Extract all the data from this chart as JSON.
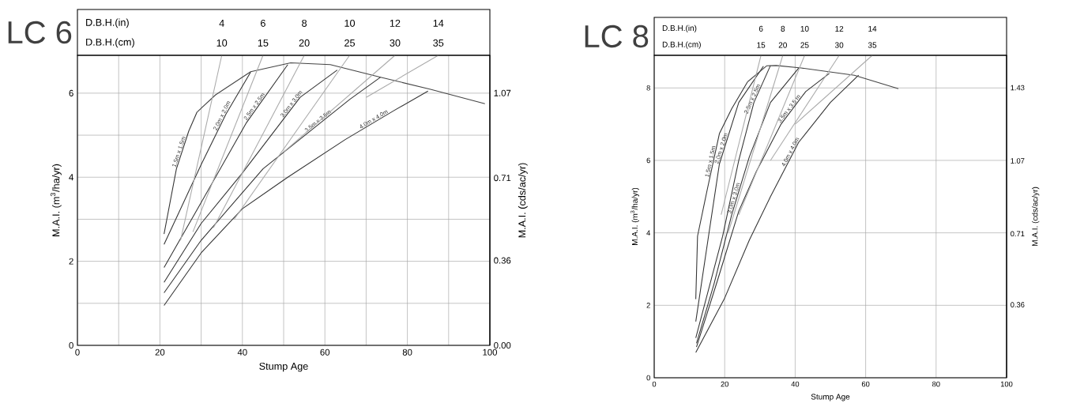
{
  "chart_data": [
    {
      "type": "line",
      "title": "LC 6",
      "xlabel": "Stump Age",
      "ylabel": "M.A.I. (m$^{3}$/ha/yr)",
      "y2label": "M.A.I. (cds/ac/yr)",
      "xlim": [
        0,
        100
      ],
      "ylim": [
        0,
        6.9
      ],
      "y2lim": [
        0,
        1.23
      ],
      "xticks": [
        0,
        {
          "value": 10,
          "label": null
        },
        20,
        {
          "value": 30,
          "label": null
        },
        40,
        {
          "value": 50,
          "label": null
        },
        60,
        {
          "value": 70,
          "label": null
        },
        80,
        {
          "value": 90,
          "label": null
        },
        100
      ],
      "yticks": [
        0,
        {
          "value": 1,
          "label": null
        },
        2,
        {
          "value": 3,
          "label": null
        },
        4,
        {
          "value": 5,
          "label": null
        },
        6
      ],
      "y2ticks": [
        {
          "value": 0,
          "label": "0.00"
        },
        0.36,
        0.71,
        1.07
      ],
      "annotations": [
        "D.B.H.(in)",
        "4",
        "6",
        "8",
        "10",
        "12",
        "14",
        "D.B.H.(cm)",
        "10",
        "15",
        "20",
        "25",
        "30",
        "35"
      ],
      "grid": true,
      "marker": "none",
      "series": [
        {
          "name": "1.5m x 1.5m",
          "color": "#333333",
          "x": [
            21,
            24,
            27,
            29
          ],
          "values": [
            2.65,
            4.2,
            5.1,
            5.55
          ]
        },
        {
          "name": "2.0m x 2.0m",
          "color": "#333333",
          "x": [
            21,
            30,
            36,
            42
          ],
          "values": [
            2.4,
            4.3,
            5.5,
            6.5
          ]
        },
        {
          "name": "2.5m x 2.5m",
          "color": "#333333",
          "x": [
            21,
            30,
            41,
            51
          ],
          "values": [
            1.85,
            3.4,
            5.3,
            6.68
          ]
        },
        {
          "name": "3.0m x 3.0m",
          "color": "#333333",
          "x": [
            21,
            30,
            40,
            54,
            63
          ],
          "values": [
            1.5,
            2.9,
            4.1,
            5.9,
            6.55
          ]
        },
        {
          "name": "3.5m x 3.5m",
          "color": "#333333",
          "x": [
            21,
            30,
            45,
            66,
            73.5
          ],
          "values": [
            1.25,
            2.5,
            4.2,
            5.85,
            6.38
          ]
        },
        {
          "name": "4.0m x 4.0m",
          "color": "#333333",
          "x": [
            21,
            30,
            40,
            51,
            65,
            77,
            85
          ],
          "values": [
            0.95,
            2.2,
            3.25,
            4.0,
            4.9,
            5.6,
            6.05
          ]
        },
        {
          "color": "#444444",
          "x": [
            29,
            33.5,
            42,
            51.7,
            61.3,
            73.5,
            85.6,
            98.8
          ],
          "values": [
            5.55,
            5.96,
            6.51,
            6.72,
            6.68,
            6.38,
            6.09,
            5.75
          ]
        },
        {
          "color": "#aaaaaa",
          "x": [
            25,
            35
          ],
          "values": [
            2.5,
            6.9
          ]
        },
        {
          "color": "#aaaaaa",
          "x": [
            28,
            45
          ],
          "values": [
            2.7,
            6.9
          ]
        },
        {
          "color": "#aaaaaa",
          "x": [
            33,
            55
          ],
          "values": [
            2.8,
            6.9
          ]
        },
        {
          "color": "#aaaaaa",
          "x": [
            38,
            66
          ],
          "values": [
            3.0,
            6.9
          ]
        },
        {
          "color": "#aaaaaa",
          "x": [
            50,
            77
          ],
          "values": [
            4.6,
            6.9
          ]
        },
        {
          "color": "#aaaaaa",
          "x": [
            70,
            87.5
          ],
          "values": [
            5.9,
            6.9
          ]
        }
      ]
    },
    {
      "type": "line",
      "title": "LC 8",
      "xlabel": "Stump Age",
      "ylabel": "M.A.I. (m$^{3}$/ha/yr)",
      "y2label": "M.A.I. (cds/ac/yr)",
      "xlim": [
        0,
        100
      ],
      "ylim": [
        0,
        8.9
      ],
      "y2lim": [
        0,
        1.59
      ],
      "xticks": [
        0,
        20,
        40,
        60,
        80,
        100
      ],
      "yticks": [
        0,
        2,
        4,
        6,
        8
      ],
      "y2ticks": [
        0.36,
        0.71,
        1.07,
        1.43
      ],
      "annotations": [
        "D.B.H.(in)",
        "6",
        "8",
        "10",
        "12",
        "14",
        "D.B.H.(cm)",
        "15",
        "20",
        "25",
        "30",
        "35"
      ],
      "grid": true,
      "marker": "none",
      "series": [
        {
          "name": "1.5m x 1.5m",
          "color": "#333333",
          "x": [
            11.8,
            12.3,
            15,
            18.5,
            22,
            26.5
          ],
          "values": [
            2.17,
            3.91,
            5.17,
            6.74,
            7.43,
            8.17
          ]
        },
        {
          "name": "2.0m x 2.0m",
          "color": "#333333",
          "x": [
            11.8,
            15.4,
            18.5,
            24,
            31
          ],
          "values": [
            1.55,
            3.9,
            5.9,
            7.6,
            8.6
          ]
        },
        {
          "name": "2.5m x 2.5m",
          "color": "#333333",
          "x": [
            11.8,
            19.4,
            24,
            28.3,
            33
          ],
          "values": [
            1.1,
            3.9,
            6.0,
            7.6,
            8.62
          ]
        },
        {
          "name": "3.0m x 3.0m",
          "color": "#333333",
          "x": [
            12,
            17,
            22,
            27,
            33,
            41
          ],
          "values": [
            0.95,
            2.6,
            4.5,
            6.1,
            7.6,
            8.55
          ]
        },
        {
          "name": "3.5m x 3.5 m",
          "color": "#333333",
          "x": [
            12,
            18,
            24,
            29,
            36,
            43,
            49.7
          ],
          "values": [
            0.85,
            2.7,
            4.6,
            5.7,
            7.0,
            7.9,
            8.4
          ]
        },
        {
          "name": "4.0m x 4.0m",
          "color": "#333333",
          "x": [
            11.8,
            20,
            27,
            33,
            41,
            50,
            58
          ],
          "values": [
            0.7,
            2.2,
            3.8,
            5.0,
            6.5,
            7.6,
            8.35
          ]
        },
        {
          "color": "#444444",
          "x": [
            26.5,
            31.9,
            34.6,
            41.7,
            56.8,
            69.3
          ],
          "values": [
            8.17,
            8.61,
            8.62,
            8.55,
            8.35,
            7.98
          ]
        },
        {
          "color": "#aaaaaa",
          "x": [
            19,
            30.3
          ],
          "values": [
            4.5,
            8.9
          ]
        },
        {
          "color": "#aaaaaa",
          "x": [
            21,
            36.5
          ],
          "values": [
            4.0,
            8.9
          ]
        },
        {
          "color": "#aaaaaa",
          "x": [
            24,
            42.7
          ],
          "values": [
            4.5,
            8.9
          ]
        },
        {
          "color": "#aaaaaa",
          "x": [
            33,
            52.5
          ],
          "values": [
            6.0,
            8.9
          ]
        },
        {
          "color": "#aaaaaa",
          "x": [
            40,
            61.9
          ],
          "values": [
            7.0,
            8.9
          ]
        }
      ]
    }
  ]
}
